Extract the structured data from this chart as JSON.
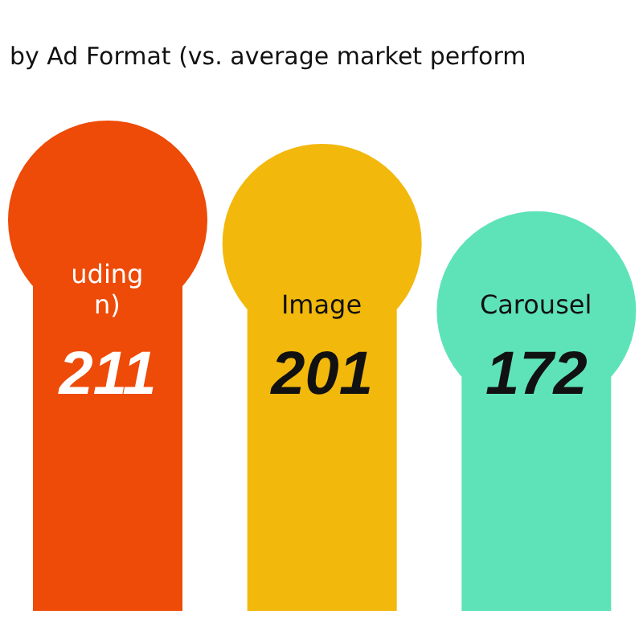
{
  "chart_data": {
    "type": "other",
    "title": "by Ad Format (vs. average market perform",
    "categories": [
      "uding n)",
      "Image",
      "Carousel"
    ],
    "values": [
      211,
      201,
      172
    ],
    "colors": [
      "#ee4a08",
      "#f2b80c",
      "#5ee3b8"
    ],
    "data_labels": true
  }
}
